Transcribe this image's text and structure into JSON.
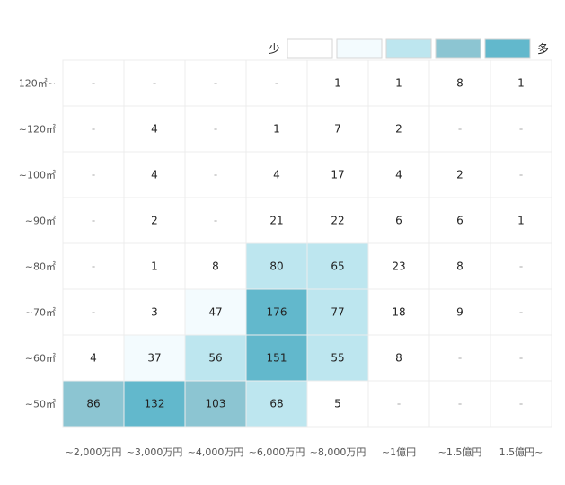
{
  "chart_data": {
    "type": "heatmap",
    "x_categories": [
      "~2,000万円",
      "~3,000万円",
      "~4,000万円",
      "~6,000万円",
      "~8,000万円",
      "~1億円",
      "~1.5億円",
      "1.5億円~"
    ],
    "y_categories": [
      "120㎡~",
      "~120㎡",
      "~100㎡",
      "~90㎡",
      "~80㎡",
      "~70㎡",
      "~60㎡",
      "~50㎡"
    ],
    "values": [
      [
        null,
        null,
        null,
        null,
        1,
        1,
        8,
        1
      ],
      [
        null,
        4,
        null,
        1,
        7,
        2,
        null,
        null
      ],
      [
        null,
        4,
        null,
        4,
        17,
        4,
        2,
        null
      ],
      [
        null,
        2,
        null,
        21,
        22,
        6,
        6,
        1
      ],
      [
        null,
        1,
        8,
        80,
        65,
        23,
        8,
        null
      ],
      [
        null,
        3,
        47,
        176,
        77,
        18,
        9,
        null
      ],
      [
        4,
        37,
        56,
        151,
        55,
        8,
        null,
        null
      ],
      [
        86,
        132,
        103,
        68,
        5,
        null,
        null,
        null
      ]
    ],
    "missing_label": "-",
    "legend": {
      "low_label": "少",
      "high_label": "多",
      "position": "top-right",
      "colors": [
        "#ffffff",
        "#f3fbfe",
        "#bde6ef",
        "#8cc5d2",
        "#62b8cc"
      ]
    },
    "color_bins": [
      {
        "min": 0,
        "max": 29,
        "color": "#ffffff"
      },
      {
        "min": 30,
        "max": 49,
        "color": "#f3fbfe"
      },
      {
        "min": 50,
        "max": 80,
        "color": "#bde6ef"
      },
      {
        "min": 81,
        "max": 104,
        "color": "#8cc5d2"
      },
      {
        "min": 105,
        "max": 1000,
        "color": "#62b8cc"
      }
    ],
    "grid_color": "#ececec"
  }
}
